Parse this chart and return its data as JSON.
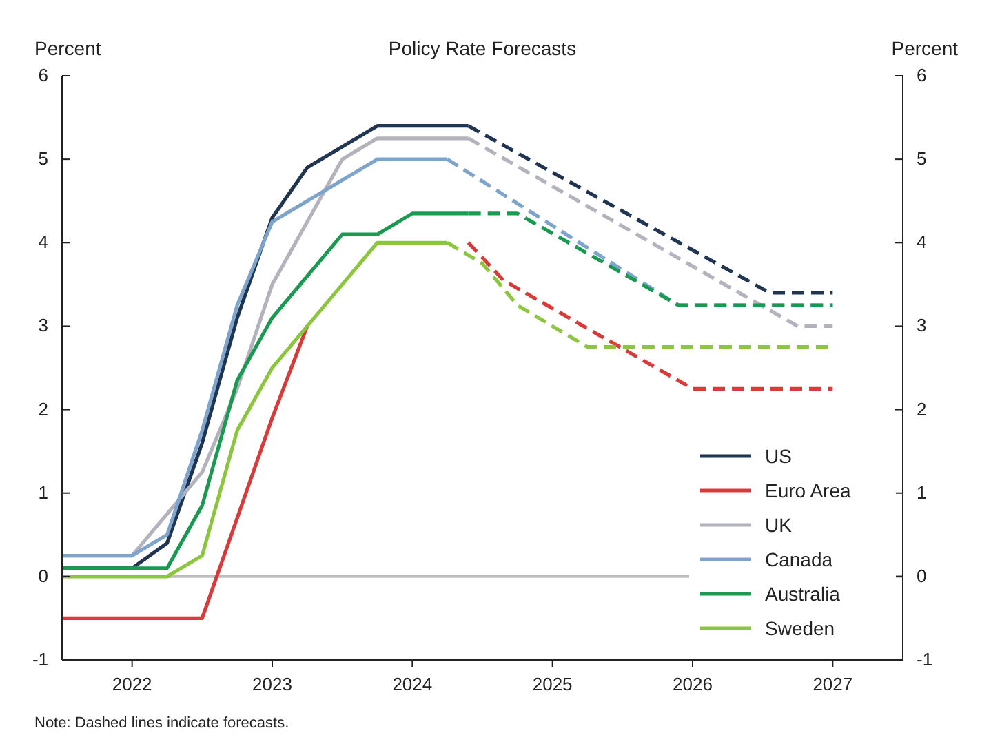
{
  "chart_data": {
    "type": "line",
    "title": "Policy Rate Forecasts",
    "ylabel": "Percent",
    "y2label": "Percent",
    "annotations": [
      "Note: Dashed lines indicate forecasts."
    ],
    "xlim": [
      2021.5,
      2027.5
    ],
    "xticks": [
      2022,
      2023,
      2024,
      2025,
      2026,
      2027
    ],
    "ylim": [
      -1,
      6
    ],
    "yticks": [
      -1,
      0,
      1,
      2,
      3,
      4,
      5,
      6
    ],
    "y2lim": [
      -1,
      6
    ],
    "y2ticks": [
      -1,
      0,
      1,
      2,
      3,
      4,
      5,
      6
    ],
    "grid": false,
    "legend": "bottom right",
    "marker": "none",
    "ref_lines": [
      {
        "axis": "y",
        "value": 0,
        "color": "#bdbdbd"
      }
    ],
    "series": [
      {
        "name": "US",
        "color": "#1f3552",
        "line_style": "solid",
        "x": [
          2021.5,
          2022,
          2022.25,
          2022.5,
          2022.75,
          2023,
          2023.25,
          2023.5,
          2023.75,
          2024.4
        ],
        "values": [
          0.1,
          0.1,
          0.4,
          1.6,
          3.1,
          4.3,
          4.9,
          5.15,
          5.4,
          5.4
        ]
      },
      {
        "color": "#1f3552",
        "line_style": "dashed",
        "x": [
          2024.4,
          2026.55,
          2027
        ],
        "values": [
          5.4,
          3.4,
          3.4
        ]
      },
      {
        "name": "Euro Area",
        "color": "#d93a3a",
        "line_style": "solid",
        "x": [
          2021.5,
          2022.5,
          2023,
          2023.25
        ],
        "values": [
          -0.5,
          -0.5,
          1.9,
          3.0
        ]
      },
      {
        "color": "#d93a3a",
        "line_style": "dashed",
        "x": [
          2024.4,
          2024.65,
          2026,
          2027
        ],
        "values": [
          4.0,
          3.55,
          2.25,
          2.25
        ]
      },
      {
        "name": "UK",
        "color": "#b3b3bd",
        "line_style": "solid",
        "x": [
          2021.5,
          2022,
          2022.25,
          2022.5,
          2022.75,
          2023,
          2023.25,
          2023.5,
          2023.75,
          2024.4
        ],
        "values": [
          0.25,
          0.25,
          0.75,
          1.25,
          2.25,
          3.5,
          4.25,
          5.0,
          5.25,
          5.25
        ]
      },
      {
        "color": "#b3b3bd",
        "line_style": "dashed",
        "x": [
          2024.4,
          2026.75,
          2027
        ],
        "values": [
          5.25,
          3.0,
          3.0
        ]
      },
      {
        "name": "Canada",
        "color": "#7fa4cc",
        "line_style": "solid",
        "x": [
          2021.5,
          2022,
          2022.25,
          2022.5,
          2022.75,
          2023,
          2023.25,
          2023.5,
          2023.75,
          2024.25
        ],
        "values": [
          0.25,
          0.25,
          0.5,
          1.75,
          3.25,
          4.25,
          4.5,
          4.75,
          5.0,
          5.0
        ]
      },
      {
        "color": "#7fa4cc",
        "line_style": "dashed",
        "x": [
          2024.25,
          2025.9,
          2027
        ],
        "values": [
          5.0,
          3.25,
          3.25
        ]
      },
      {
        "name": "Australia",
        "color": "#1a9a50",
        "line_style": "solid",
        "x": [
          2021.5,
          2022,
          2022.25,
          2022.5,
          2022.75,
          2023,
          2023.25,
          2023.5,
          2023.75,
          2024,
          2024.4
        ],
        "values": [
          0.1,
          0.1,
          0.1,
          0.85,
          2.35,
          3.1,
          3.6,
          4.1,
          4.1,
          4.35,
          4.35
        ]
      },
      {
        "color": "#1a9a50",
        "line_style": "dashed",
        "x": [
          2024.4,
          2024.75,
          2025.9,
          2027
        ],
        "values": [
          4.35,
          4.35,
          3.25,
          3.25
        ]
      },
      {
        "name": "Sweden",
        "color": "#8cc63f",
        "line_style": "solid",
        "x": [
          2021.5,
          2022.25,
          2022.5,
          2022.75,
          2023,
          2023.25,
          2023.5,
          2023.75,
          2024.25
        ],
        "values": [
          0,
          0,
          0.25,
          1.75,
          2.5,
          3.0,
          3.5,
          4.0,
          4.0
        ]
      },
      {
        "color": "#8cc63f",
        "line_style": "dashed",
        "x": [
          2024.25,
          2024.5,
          2024.75,
          2025.25,
          2027
        ],
        "values": [
          4.0,
          3.75,
          3.25,
          2.75,
          2.75
        ]
      }
    ]
  }
}
